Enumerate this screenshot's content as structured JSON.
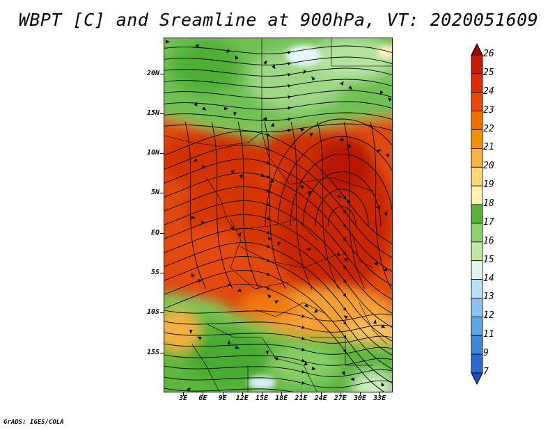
{
  "title": "WBPT [C] and Sreamline at 900hPa, VT: 2020051609",
  "footer": "GrADS: IGES/COLA",
  "map": {
    "lon_range": [
      0,
      35
    ],
    "lat_range": [
      -20,
      24.5
    ],
    "lat_labels": [
      "20N",
      "15N",
      "10N",
      "5N",
      "EQ",
      "5S",
      "10S",
      "15S"
    ],
    "lat_values": [
      20,
      15,
      10,
      5,
      0,
      -5,
      -10,
      -15
    ],
    "lon_labels": [
      "3E",
      "6E",
      "9E",
      "12E",
      "15E",
      "18E",
      "21E",
      "24E",
      "27E",
      "30E",
      "33E"
    ],
    "lon_values": [
      3,
      6,
      9,
      12,
      15,
      18,
      21,
      24,
      27,
      30,
      33
    ],
    "field": "wet-bulb potential temperature",
    "overlay": "streamlines"
  },
  "colorbar": {
    "labels": [
      "26",
      "25",
      "24",
      "23",
      "22",
      "21",
      "20",
      "19",
      "18",
      "17",
      "16",
      "15",
      "14",
      "13",
      "12",
      "11",
      "9",
      "7"
    ],
    "colors": [
      "#a50000",
      "#c31a00",
      "#dc2c00",
      "#e84a00",
      "#f06e00",
      "#f59000",
      "#f8b440",
      "#fbd878",
      "#fff3b0",
      "#5ab43c",
      "#8cd26c",
      "#bfe9a8",
      "#e4f7ee",
      "#b8e0f8",
      "#8cc4f0",
      "#5ca6e6",
      "#3f86dc",
      "#2a68d2",
      "#1e50c8"
    ]
  }
}
